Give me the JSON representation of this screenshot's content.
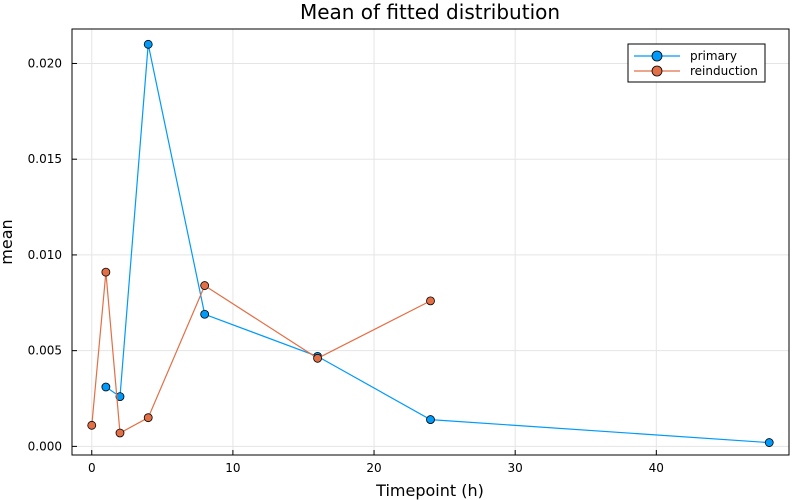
{
  "chart_data": {
    "type": "line",
    "title": "Mean of fitted distribution",
    "xlabel": "Timepoint (h)",
    "ylabel": "mean",
    "xlim": [
      -1.4,
      49.4
    ],
    "ylim": [
      -0.00045,
      0.0218
    ],
    "xticks": [
      0,
      10,
      20,
      30,
      40
    ],
    "xtick_labels": [
      "0",
      "10",
      "20",
      "30",
      "40"
    ],
    "yticks": [
      0.0,
      0.005,
      0.01,
      0.015,
      0.02
    ],
    "ytick_labels": [
      "0.000",
      "0.005",
      "0.010",
      "0.015",
      "0.020"
    ],
    "grid": true,
    "legend_position": "top-right",
    "series": [
      {
        "name": "primary",
        "color": "#009AFA",
        "x": [
          1,
          2,
          4,
          8,
          16,
          24,
          48
        ],
        "y": [
          0.0031,
          0.0026,
          0.021,
          0.0069,
          0.0047,
          0.0014,
          0.0002
        ]
      },
      {
        "name": "reinduction",
        "color": "#E26F46",
        "x": [
          0,
          1,
          2,
          4,
          8,
          16,
          24
        ],
        "y": [
          0.0011,
          0.0091,
          0.0007,
          0.0015,
          0.0084,
          0.0046,
          0.0076
        ]
      }
    ]
  }
}
